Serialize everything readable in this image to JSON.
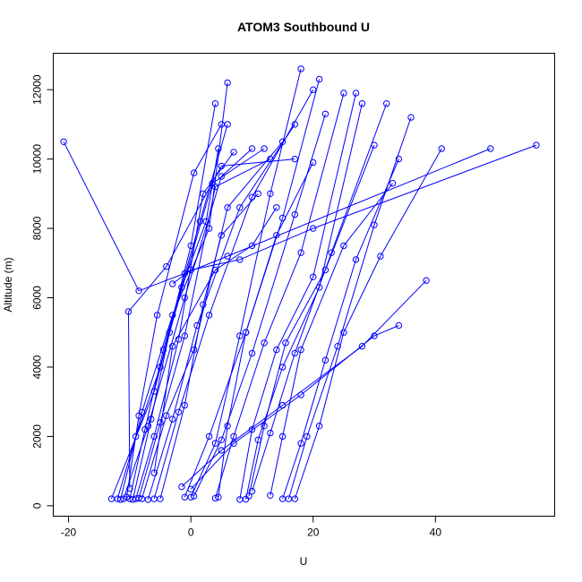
{
  "chart_data": {
    "type": "line",
    "title": "ATOM3 Southbound U",
    "xlabel": "U",
    "ylabel": "Altitude (m)",
    "xlim": [
      -22.5,
      59.5
    ],
    "ylim": [
      -300,
      13050
    ],
    "x_ticks": [
      -20,
      0,
      20,
      40
    ],
    "y_ticks": [
      0,
      2000,
      4000,
      6000,
      8000,
      10000,
      12000
    ],
    "x_tick_labels": [
      "-20",
      "0",
      "20",
      "40"
    ],
    "y_tick_labels": [
      "0",
      "2000",
      "4000",
      "6000",
      "8000",
      "10000",
      "12000"
    ],
    "grid": false,
    "legend": "none",
    "color": "#0000FF",
    "marker": "open-circle",
    "series": [
      {
        "x": [
          -13.0,
          -6.0,
          -1.5,
          2.5,
          4.5
        ],
        "y": [
          200,
          3300,
          6300,
          8200,
          10300
        ]
      },
      {
        "x": [
          -12.0,
          -9.0,
          -5.0,
          0.0,
          4.0
        ],
        "y": [
          200,
          2000,
          4000,
          7500,
          11600
        ]
      },
      {
        "x": [
          -11.5,
          -8.0,
          -3.0,
          3.0,
          6.0
        ],
        "y": [
          180,
          2700,
          5500,
          8000,
          12200
        ]
      },
      {
        "x": [
          -11.0,
          -7.0,
          -1.0,
          5.0,
          10.0
        ],
        "y": [
          200,
          2300,
          6000,
          9500,
          10300
        ]
      },
      {
        "x": [
          -10.5,
          -8.5,
          -5.5,
          0.5,
          5.0
        ],
        "y": [
          250,
          2600,
          5500,
          9600,
          11000
        ]
      },
      {
        "x": [
          -10.0,
          -7.5,
          -4.5,
          1.5,
          6.0
        ],
        "y": [
          200,
          2200,
          4500,
          8200,
          11000
        ]
      },
      {
        "x": [
          -9.5,
          -6.5,
          -3.5,
          3.5,
          12.0
        ],
        "y": [
          180,
          2500,
          5000,
          9300,
          10300
        ]
      },
      {
        "x": [
          -9.0,
          -6.0,
          -2.0,
          2.0,
          7.0
        ],
        "y": [
          200,
          2000,
          4800,
          9000,
          10200
        ]
      },
      {
        "x": [
          -8.5,
          -5.0,
          -1.0,
          4.0,
          13.0
        ],
        "y": [
          220,
          2400,
          4900,
          9200,
          10000
        ]
      },
      {
        "x": [
          -8.0,
          -4.0,
          0.5,
          6.0,
          15.0
        ],
        "y": [
          200,
          2600,
          4500,
          8600,
          10500
        ]
      },
      {
        "x": [
          -7.0,
          -3.0,
          1.0,
          8.0,
          17.0
        ],
        "y": [
          180,
          2500,
          5200,
          8600,
          11000
        ]
      },
      {
        "x": [
          -6.0,
          -2.0,
          3.0,
          10.0,
          20.0
        ],
        "y": [
          200,
          2700,
          5500,
          8900,
          12000
        ]
      },
      {
        "x": [
          -5.0,
          -1.0,
          2.0,
          5.0,
          11.0
        ],
        "y": [
          200,
          2900,
          5800,
          7800,
          9000
        ]
      },
      {
        "x": [
          -1.0,
          3.0,
          9.0,
          15.0,
          21.0
        ],
        "y": [
          250,
          2000,
          5000,
          8300,
          12300
        ]
      },
      {
        "x": [
          0.0,
          4.0,
          8.0,
          13.0,
          18.0
        ],
        "y": [
          250,
          1800,
          4900,
          9000,
          12600
        ]
      },
      {
        "x": [
          0.5,
          5.0,
          10.0,
          17.0,
          22.0
        ],
        "y": [
          280,
          1900,
          4400,
          8400,
          11300
        ]
      },
      {
        "x": [
          4.0,
          7.0,
          12.0,
          18.0,
          25.0
        ],
        "y": [
          220,
          2000,
          4700,
          7300,
          11900
        ]
      },
      {
        "x": [
          4.5,
          6.0,
          9.0,
          14.0,
          20.0
        ],
        "y": [
          250,
          2300,
          5000,
          7800,
          9900
        ]
      },
      {
        "x": [
          8.0,
          10.0,
          14.0,
          20.0,
          27.0
        ],
        "y": [
          180,
          2200,
          4500,
          6600,
          11900
        ]
      },
      {
        "x": [
          9.0,
          11.0,
          15.0,
          21.0,
          28.0
        ],
        "y": [
          190,
          1900,
          4000,
          6300,
          11600
        ]
      },
      {
        "x": [
          9.5,
          12.0,
          15.5,
          22.0,
          30.0
        ],
        "y": [
          280,
          2300,
          4700,
          6800,
          10400
        ]
      },
      {
        "x": [
          10.0,
          13.0,
          17.0,
          23.0,
          32.0
        ],
        "y": [
          420,
          2100,
          4400,
          7300,
          11600
        ]
      },
      {
        "x": [
          13.0,
          15.0,
          18.0,
          25.0,
          33.0
        ],
        "y": [
          300,
          2000,
          4500,
          7500,
          9300
        ]
      },
      {
        "x": [
          15.0,
          18.0,
          22.0,
          27.0,
          34.0
        ],
        "y": [
          200,
          1800,
          4200,
          7100,
          10000
        ]
      },
      {
        "x": [
          16.0,
          19.0,
          24.0,
          30.0,
          36.0
        ],
        "y": [
          200,
          2000,
          4600,
          8100,
          11200
        ]
      },
      {
        "x": [
          17.0,
          21.0,
          25.0,
          31.0,
          41.0
        ],
        "y": [
          200,
          2300,
          5000,
          7200,
          10300
        ]
      },
      {
        "x": [
          -1.5,
          5.0,
          15.0,
          28.0,
          38.5
        ],
        "y": [
          550,
          1600,
          2900,
          4600,
          6500
        ]
      },
      {
        "x": [
          0.0,
          7.0,
          18.0,
          30.0,
          34.0
        ],
        "y": [
          480,
          1800,
          3200,
          4900,
          5200
        ]
      },
      {
        "x": [
          -10.0,
          -10.2,
          -4.0,
          5.0,
          17.0
        ],
        "y": [
          500,
          5600,
          6900,
          9800,
          10000
        ]
      },
      {
        "x": [
          -6.0,
          -3.0,
          4.0,
          10.0,
          14.0
        ],
        "y": [
          950,
          4600,
          6800,
          7500,
          8600
        ]
      },
      {
        "x": [
          -3.0,
          0.0,
          8.0,
          20.0,
          56.5
        ],
        "y": [
          6400,
          6800,
          7100,
          8000,
          10400
        ]
      },
      {
        "x": [
          -20.8,
          -8.5,
          -1.0,
          6.0,
          49.0
        ],
        "y": [
          10500,
          6200,
          6700,
          7200,
          10300
        ]
      }
    ]
  }
}
